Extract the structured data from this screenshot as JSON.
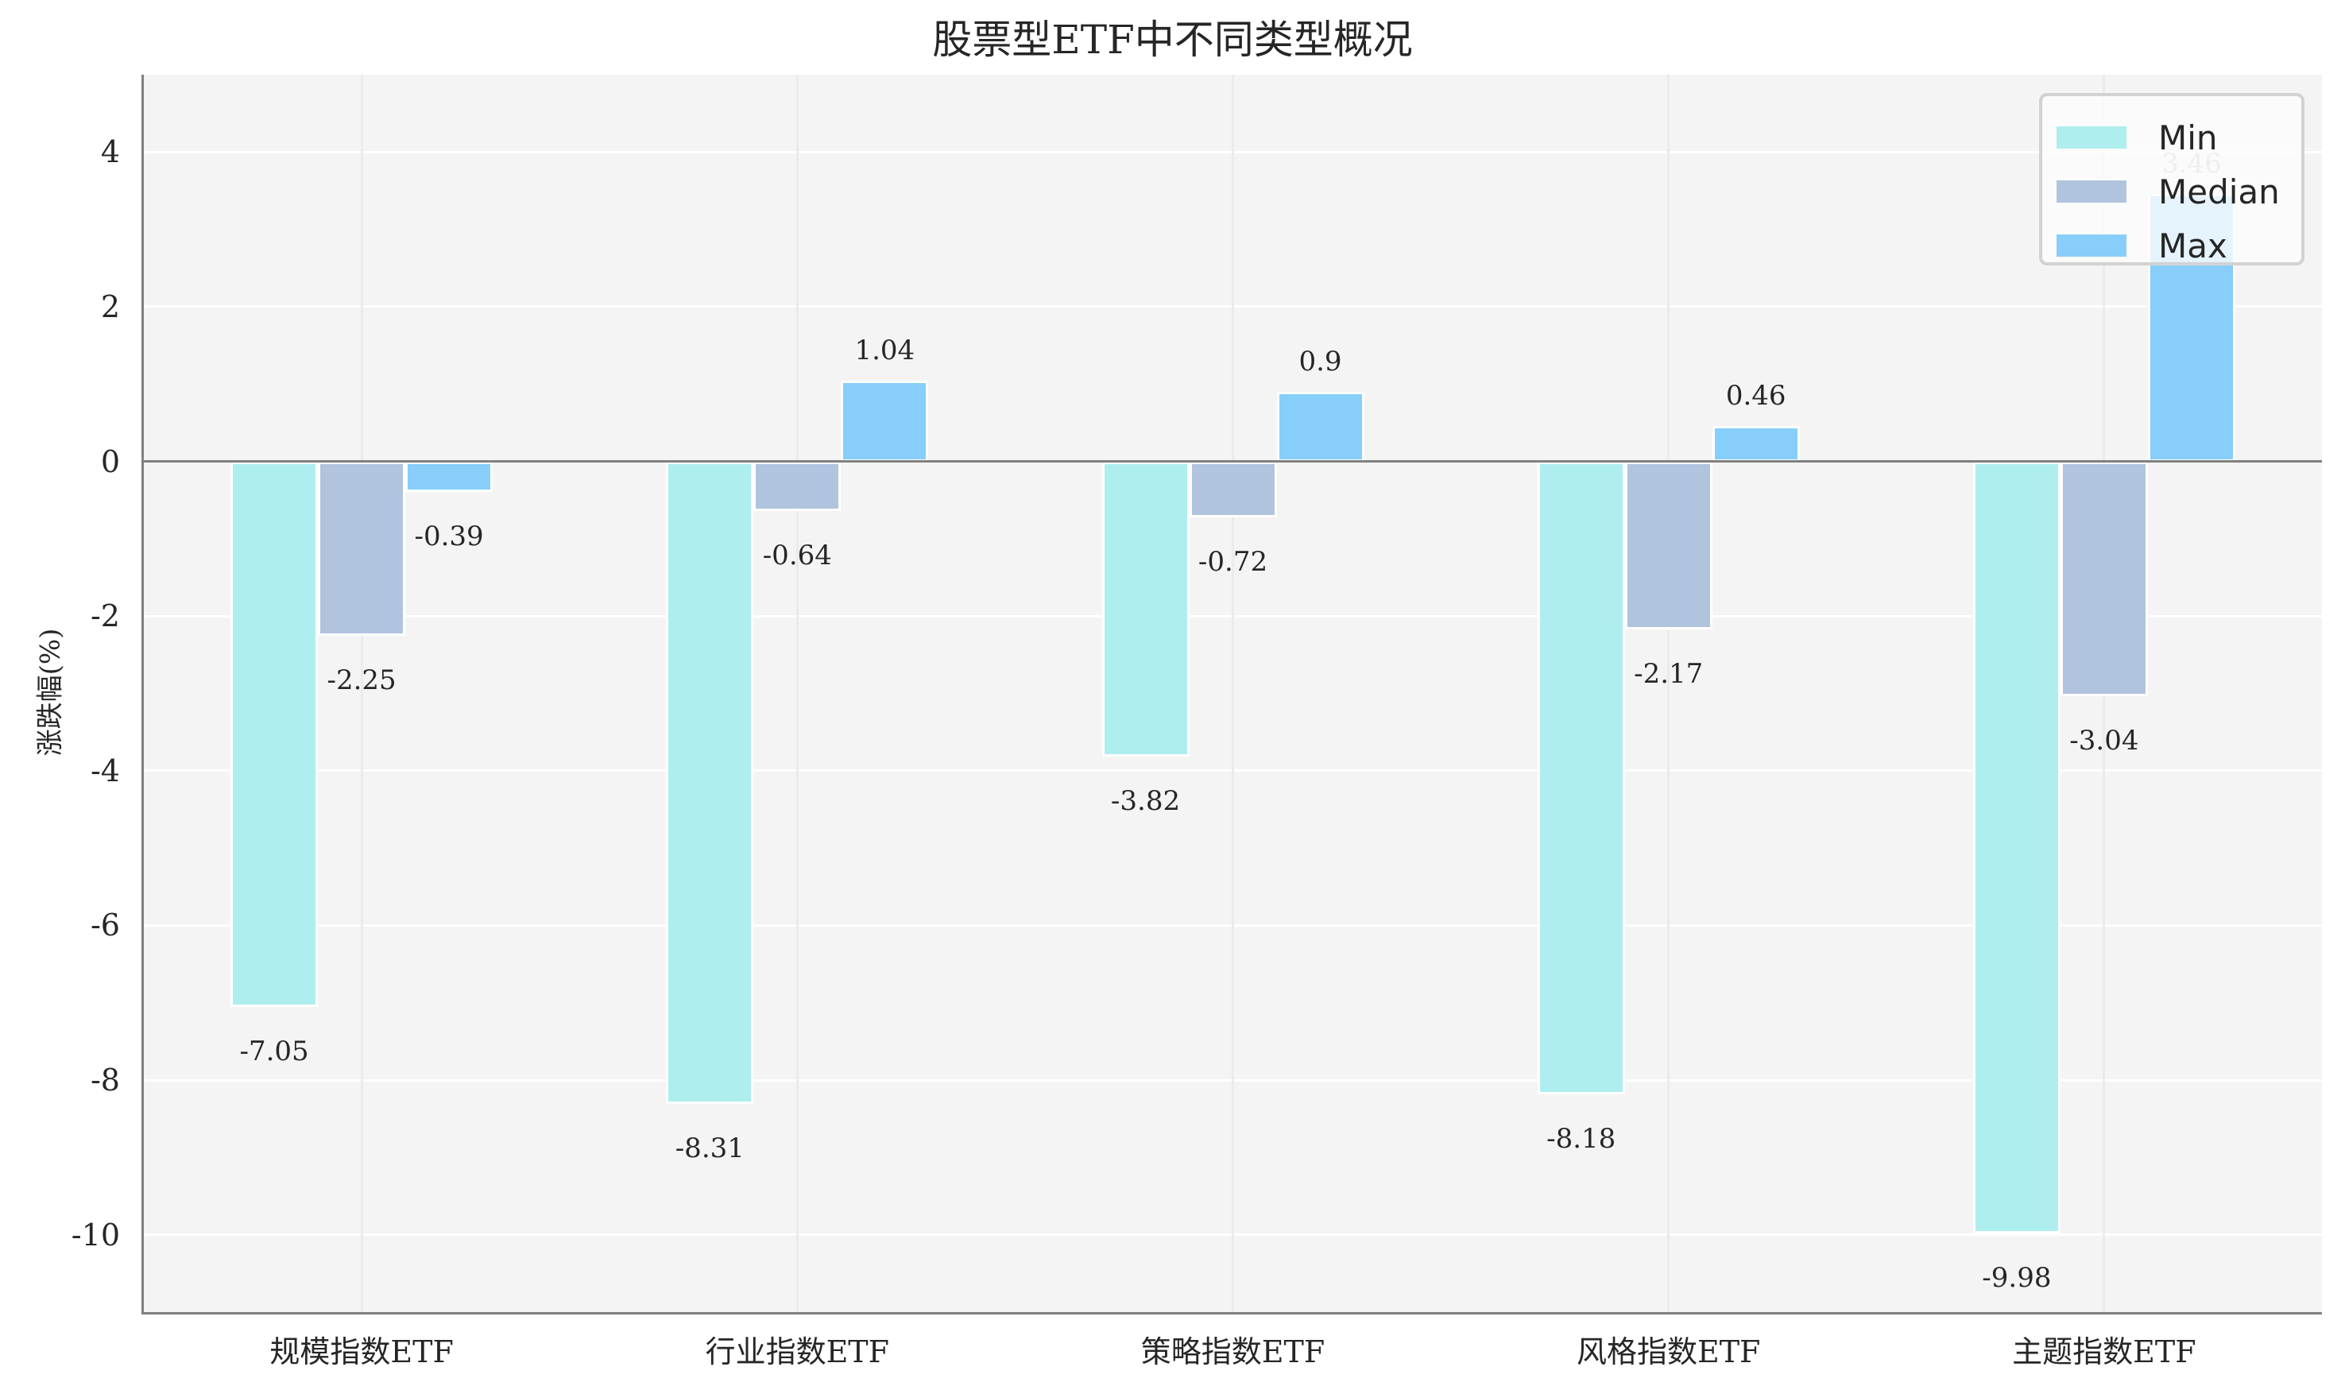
{
  "title": "股票型ETF中不同类型概况",
  "ylabel": "涨跌幅(%)",
  "colors": {
    "Min": "#AFEEEE",
    "Median": "#B0C4DE",
    "Max": "#87CEFA"
  },
  "legend": {
    "items": [
      "Min",
      "Median",
      "Max"
    ]
  },
  "yticks": [
    "4",
    "2",
    "0",
    "-2",
    "-4",
    "-6",
    "-8",
    "-10"
  ],
  "chart_data": {
    "type": "bar",
    "title": "股票型ETF中不同类型概况",
    "xlabel": "",
    "ylabel": "涨跌幅(%)",
    "categories": [
      "规模指数ETF",
      "行业指数ETF",
      "策略指数ETF",
      "风格指数ETF",
      "主题指数ETF"
    ],
    "series": [
      {
        "name": "Min",
        "values": [
          -7.05,
          -8.31,
          -3.82,
          -8.18,
          -9.98
        ]
      },
      {
        "name": "Median",
        "values": [
          -2.25,
          -0.64,
          -0.72,
          -2.17,
          -3.04
        ]
      },
      {
        "name": "Max",
        "values": [
          -0.39,
          1.04,
          0.9,
          0.46,
          3.46
        ]
      }
    ],
    "data_labels": {
      "Min": [
        "-7.05",
        "-8.31",
        "-3.82",
        "-8.18",
        "-9.98"
      ],
      "Median": [
        "-2.25",
        "-0.64",
        "-0.72",
        "-2.17",
        "-3.04"
      ],
      "Max": [
        "-0.39",
        "1.04",
        "0.9",
        "0.46",
        "3.46"
      ]
    },
    "ylim": [
      -11,
      5
    ],
    "yticks": [
      4,
      2,
      0,
      -2,
      -4,
      -6,
      -8,
      -10
    ],
    "grid": true,
    "legend_position": "upper right"
  }
}
